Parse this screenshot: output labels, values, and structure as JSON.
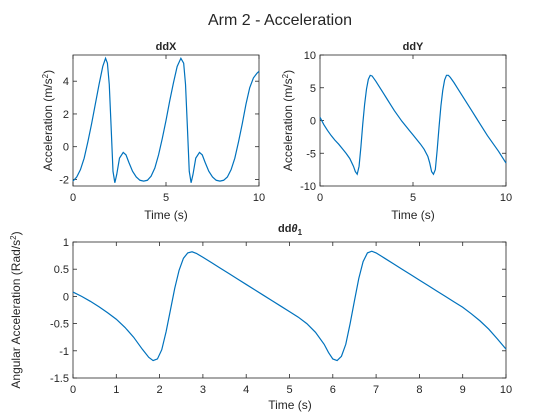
{
  "figure": {
    "title": "Arm 2 - Acceleration"
  },
  "chart_data": [
    {
      "type": "line",
      "title": "ddX",
      "xlabel": "Time (s)",
      "ylabel": "Acceleration (m/s",
      "ylabel_sup": "2",
      "ylabel_tail": ")",
      "xlim": [
        0,
        10
      ],
      "ylim": [
        -2.4,
        5.6
      ],
      "xticks": [
        0,
        5,
        10
      ],
      "yticks": [
        -2,
        0,
        2,
        4
      ],
      "grid": false,
      "color": "#0072bd",
      "series": [
        {
          "x": [
            0,
            0.2,
            0.4,
            0.6,
            0.8,
            1.0,
            1.2,
            1.4,
            1.6,
            1.75,
            1.85,
            1.95,
            2.05,
            2.15,
            2.25,
            2.35,
            2.5,
            2.7,
            2.85,
            3.0,
            3.2,
            3.4,
            3.6,
            3.8,
            4.0,
            4.2,
            4.4,
            4.6,
            4.8,
            5.0,
            5.2,
            5.4,
            5.6,
            5.8,
            5.95,
            6.05,
            6.15,
            6.25,
            6.35,
            6.45,
            6.6,
            6.8,
            6.95,
            7.1,
            7.3,
            7.5,
            7.7,
            7.9,
            8.1,
            8.3,
            8.5,
            8.7,
            8.9,
            9.1,
            9.3,
            9.5,
            9.7,
            9.9,
            10.0
          ],
          "y": [
            -2.1,
            -1.85,
            -1.4,
            -0.7,
            0.3,
            1.4,
            2.6,
            3.8,
            4.9,
            5.4,
            5.1,
            3.8,
            1.2,
            -1.5,
            -2.2,
            -1.7,
            -0.7,
            -0.35,
            -0.5,
            -0.95,
            -1.5,
            -1.85,
            -2.05,
            -2.1,
            -2.05,
            -1.8,
            -1.3,
            -0.5,
            0.5,
            1.6,
            2.8,
            3.9,
            4.9,
            5.4,
            5.1,
            3.8,
            1.2,
            -1.5,
            -2.2,
            -1.7,
            -0.7,
            -0.35,
            -0.5,
            -0.95,
            -1.5,
            -1.85,
            -2.05,
            -2.1,
            -2.05,
            -1.85,
            -1.4,
            -0.7,
            0.3,
            1.4,
            2.6,
            3.6,
            4.2,
            4.5,
            4.6
          ]
        }
      ]
    },
    {
      "type": "line",
      "title": "ddY",
      "xlabel": "Time (s)",
      "ylabel": "Acceleration (m/s",
      "ylabel_sup": "2",
      "ylabel_tail": ")",
      "xlim": [
        0,
        10
      ],
      "ylim": [
        -10,
        10
      ],
      "xticks": [
        0,
        5,
        10
      ],
      "yticks": [
        -10,
        -5,
        0,
        5,
        10
      ],
      "grid": false,
      "color": "#0072bd",
      "series": [
        {
          "x": [
            0,
            0.2,
            0.4,
            0.6,
            0.8,
            1.0,
            1.2,
            1.4,
            1.6,
            1.8,
            1.9,
            2.0,
            2.1,
            2.2,
            2.3,
            2.4,
            2.5,
            2.6,
            2.7,
            2.8,
            3.0,
            3.2,
            3.4,
            3.6,
            3.8,
            4.0,
            4.2,
            4.4,
            4.6,
            4.8,
            5.0,
            5.2,
            5.4,
            5.6,
            5.8,
            5.9,
            6.0,
            6.1,
            6.2,
            6.3,
            6.4,
            6.5,
            6.6,
            6.7,
            6.8,
            6.9,
            7.0,
            7.2,
            7.4,
            7.6,
            7.8,
            8.0,
            8.2,
            8.4,
            8.6,
            8.8,
            9.0,
            9.2,
            9.4,
            9.6,
            9.8,
            10.0
          ],
          "y": [
            0.5,
            -0.6,
            -1.5,
            -2.3,
            -3.0,
            -3.6,
            -4.3,
            -5.0,
            -5.8,
            -7.0,
            -7.8,
            -8.2,
            -7.0,
            -4.0,
            -0.5,
            2.5,
            4.8,
            6.3,
            6.9,
            6.8,
            6.0,
            5.1,
            4.2,
            3.3,
            2.4,
            1.5,
            0.7,
            -0.1,
            -0.8,
            -1.5,
            -2.2,
            -2.9,
            -3.6,
            -4.4,
            -5.5,
            -6.5,
            -7.8,
            -8.2,
            -7.5,
            -4.5,
            -1.0,
            2.2,
            4.6,
            6.2,
            6.9,
            6.9,
            6.6,
            5.8,
            4.9,
            4.0,
            3.1,
            2.2,
            1.3,
            0.4,
            -0.5,
            -1.4,
            -2.3,
            -3.1,
            -3.9,
            -4.7,
            -5.6,
            -6.5
          ]
        }
      ]
    },
    {
      "type": "line",
      "title_prefix": "dd",
      "title_symbol": "θ",
      "title_sub": "1",
      "xlabel": "Time (s)",
      "ylabel": "Angular Acceleration (Rad/s",
      "ylabel_sup": "2",
      "ylabel_tail": ")",
      "xlim": [
        0,
        10
      ],
      "ylim": [
        -1.5,
        1
      ],
      "xticks": [
        0,
        1,
        2,
        3,
        4,
        5,
        6,
        7,
        8,
        9,
        10
      ],
      "yticks": [
        -1.5,
        -1,
        -0.5,
        0,
        0.5,
        1
      ],
      "ytick_labels": [
        "-1.5",
        "-1",
        "-0.5",
        "0",
        "0.5",
        "1"
      ],
      "grid": false,
      "color": "#0072bd",
      "series": [
        {
          "x": [
            0,
            0.2,
            0.4,
            0.6,
            0.8,
            1.0,
            1.2,
            1.4,
            1.6,
            1.75,
            1.85,
            1.95,
            2.05,
            2.15,
            2.25,
            2.35,
            2.45,
            2.55,
            2.65,
            2.75,
            2.85,
            3.0,
            3.2,
            3.4,
            3.6,
            3.8,
            4.0,
            4.2,
            4.4,
            4.6,
            4.8,
            5.0,
            5.2,
            5.4,
            5.6,
            5.8,
            5.9,
            6.0,
            6.1,
            6.2,
            6.3,
            6.4,
            6.5,
            6.6,
            6.7,
            6.8,
            6.9,
            7.0,
            7.2,
            7.4,
            7.6,
            7.8,
            8.0,
            8.2,
            8.4,
            8.6,
            8.8,
            9.0,
            9.2,
            9.4,
            9.6,
            9.8,
            10.0
          ],
          "y": [
            0.08,
            0.0,
            -0.09,
            -0.19,
            -0.3,
            -0.42,
            -0.57,
            -0.75,
            -0.97,
            -1.12,
            -1.18,
            -1.15,
            -0.98,
            -0.65,
            -0.25,
            0.15,
            0.48,
            0.7,
            0.8,
            0.82,
            0.79,
            0.72,
            0.62,
            0.52,
            0.42,
            0.32,
            0.22,
            0.12,
            0.02,
            -0.08,
            -0.18,
            -0.28,
            -0.38,
            -0.5,
            -0.66,
            -0.88,
            -1.03,
            -1.15,
            -1.18,
            -1.1,
            -0.88,
            -0.5,
            -0.08,
            0.33,
            0.64,
            0.8,
            0.83,
            0.8,
            0.7,
            0.6,
            0.5,
            0.4,
            0.3,
            0.2,
            0.1,
            0.0,
            -0.1,
            -0.2,
            -0.32,
            -0.45,
            -0.6,
            -0.78,
            -0.97
          ]
        }
      ]
    }
  ]
}
